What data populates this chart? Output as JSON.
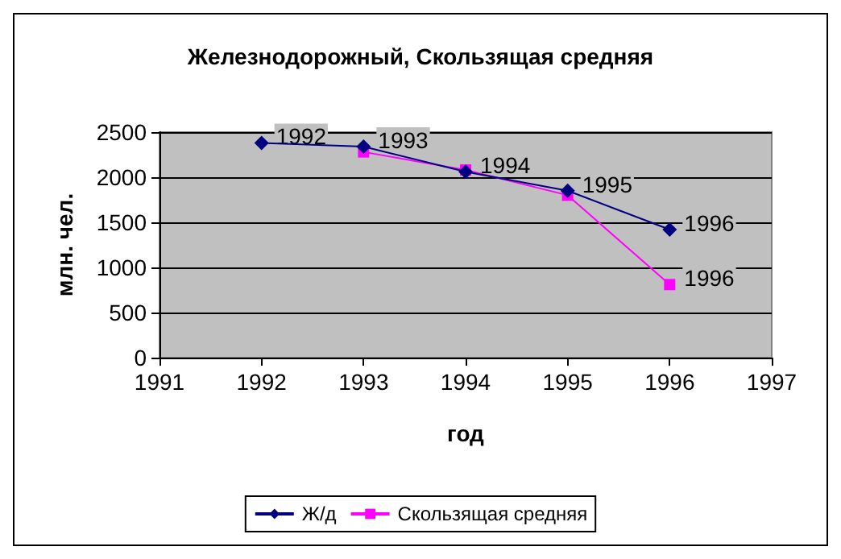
{
  "chart_data": {
    "type": "line",
    "title": "Железнодорожный, Скользящая средняя",
    "xlabel": "год",
    "ylabel": "млн. чел.",
    "series": [
      {
        "name": "Ж/д",
        "color": "#000080",
        "marker": "diamond",
        "x": [
          1992,
          1993,
          1994,
          1995,
          1996
        ],
        "values": [
          2380,
          2340,
          2060,
          1850,
          1420
        ]
      },
      {
        "name": "Скользящая средняя",
        "color": "#ff00ff",
        "marker": "square",
        "x": [
          1993,
          1994,
          1995,
          1996
        ],
        "values": [
          2280,
          2080,
          1800,
          810
        ]
      }
    ],
    "annotations": [
      {
        "text": "1992",
        "x": 1992,
        "y": 2380
      },
      {
        "text": "1993",
        "x": 1993,
        "y": 2340
      },
      {
        "text": "1994",
        "x": 1994,
        "y": 2060
      },
      {
        "text": "1995",
        "x": 1995,
        "y": 1850
      },
      {
        "text": "1996",
        "x": 1996,
        "y": 1420
      },
      {
        "text": "1996",
        "x": 1996,
        "y": 810
      }
    ],
    "xlim": [
      1991,
      1997
    ],
    "xticks": [
      1991,
      1992,
      1993,
      1994,
      1995,
      1996,
      1997
    ],
    "ylim": [
      0,
      2500
    ],
    "yticks": [
      0,
      500,
      1000,
      1500,
      2000,
      2500
    ],
    "grid": "y",
    "legend": "bottom"
  }
}
